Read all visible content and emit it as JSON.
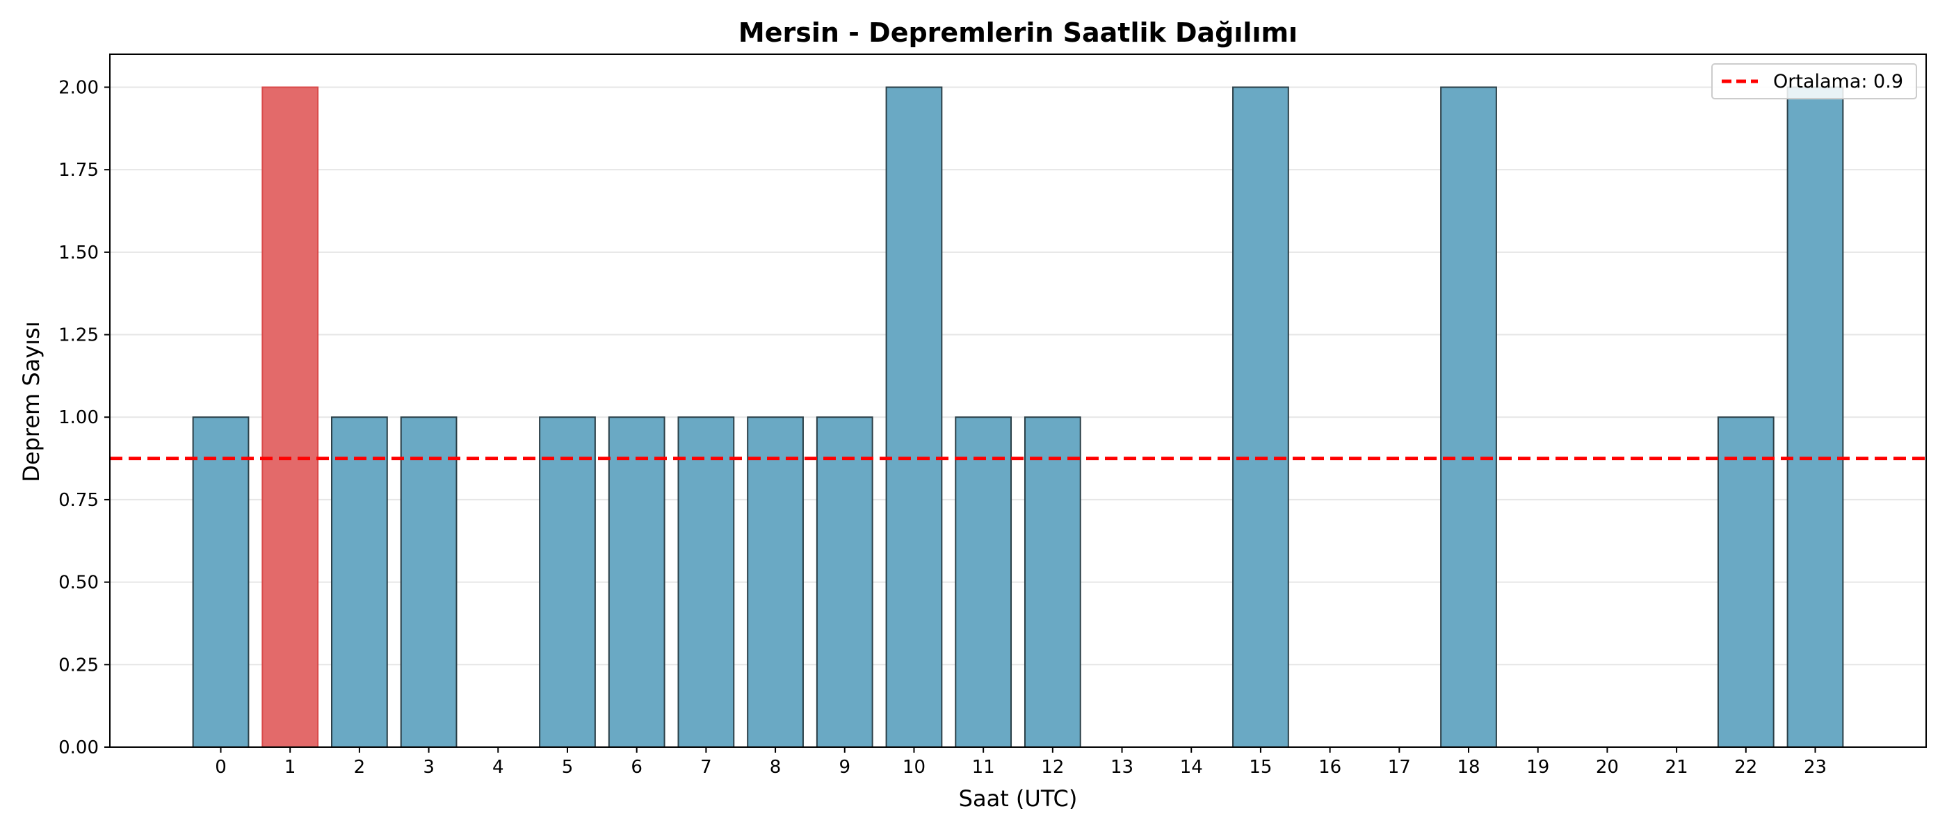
{
  "chart_data": {
    "type": "bar",
    "title": "Mersin - Depremlerin Saatlik Dağılımı",
    "xlabel": "Saat (UTC)",
    "ylabel": "Deprem Sayısı",
    "categories": [
      "0",
      "1",
      "2",
      "3",
      "4",
      "5",
      "6",
      "7",
      "8",
      "9",
      "10",
      "11",
      "12",
      "13",
      "14",
      "15",
      "16",
      "17",
      "18",
      "19",
      "20",
      "21",
      "22",
      "23"
    ],
    "values": [
      1,
      2,
      1,
      1,
      0,
      1,
      1,
      1,
      1,
      1,
      2,
      1,
      1,
      0,
      0,
      2,
      0,
      0,
      2,
      0,
      0,
      0,
      1,
      2
    ],
    "highlight_index": 1,
    "ylim": [
      0,
      2.1
    ],
    "yticks": [
      "0.00",
      "0.25",
      "0.50",
      "0.75",
      "1.00",
      "1.25",
      "1.50",
      "1.75",
      "2.00"
    ],
    "mean_line": {
      "value": 0.875,
      "label": "Ortalama: 0.9"
    },
    "grid": "y",
    "legend_position": "top-right",
    "colors": {
      "bar": "#6aa9c4",
      "bar_edge": "#2b3f47",
      "highlight": "#e36a6a",
      "highlight_edge": "#d94a4a",
      "mean_line": "#ff0000",
      "grid": "#e6e6e6"
    }
  }
}
